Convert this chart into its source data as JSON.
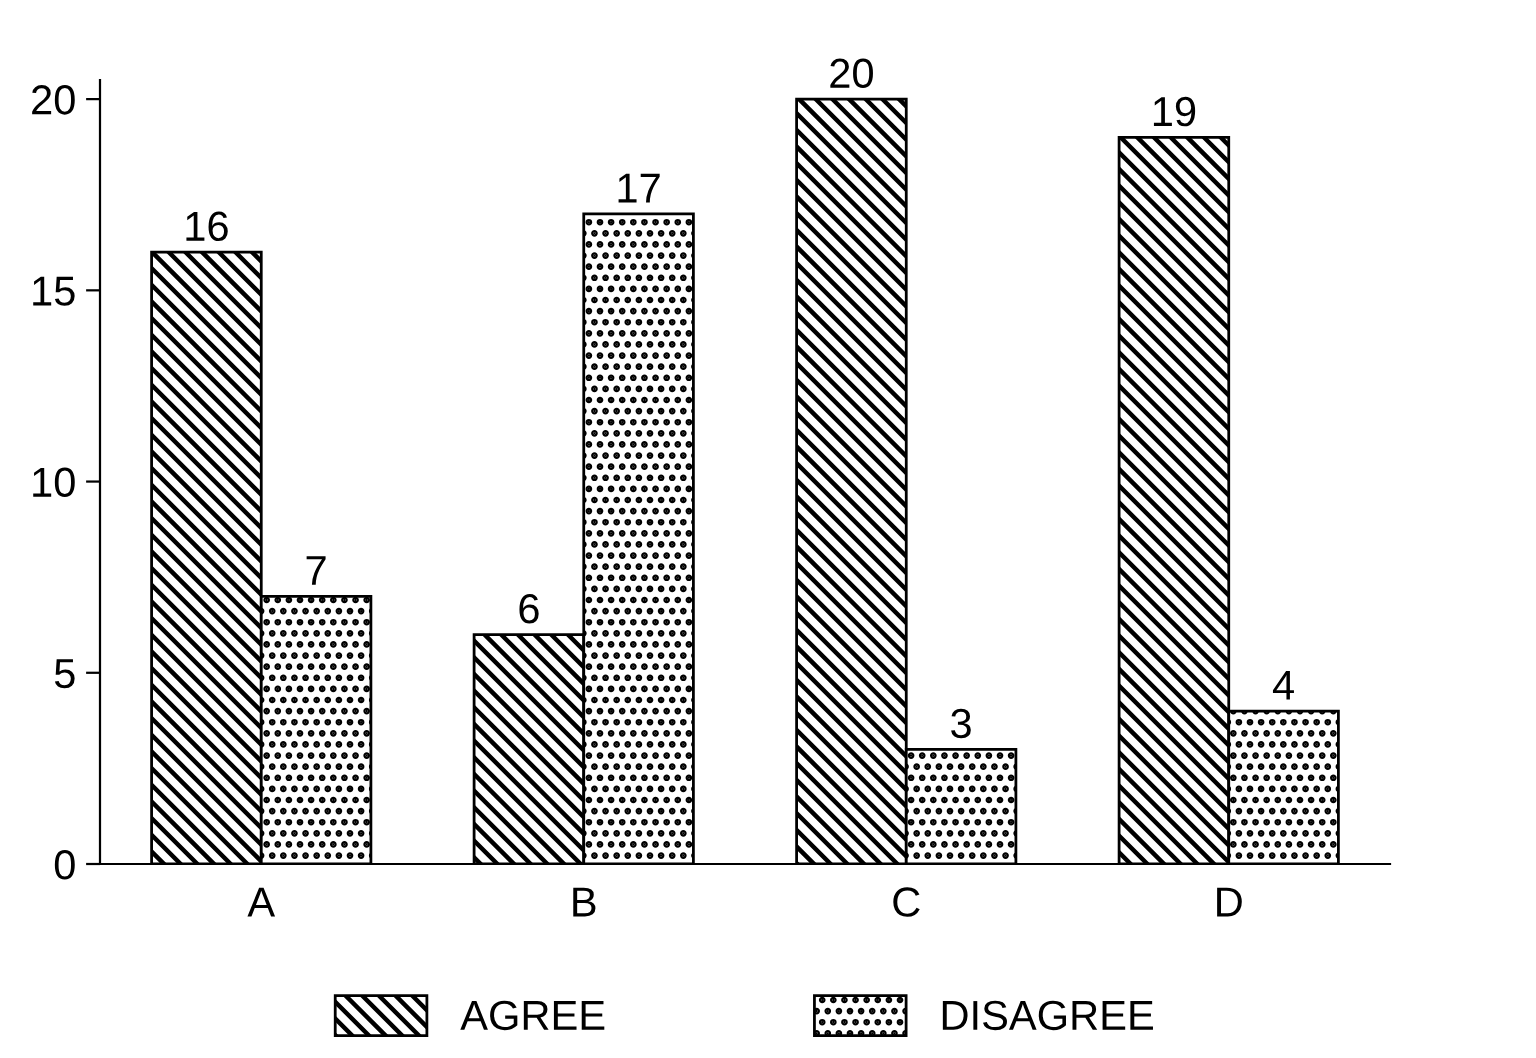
{
  "chart_data": {
    "type": "bar",
    "categories": [
      "A",
      "B",
      "C",
      "D"
    ],
    "series": [
      {
        "name": "AGREE",
        "color": "#000000",
        "values": [
          16,
          6,
          20,
          19
        ]
      },
      {
        "name": "DISAGREE",
        "color": "#000000",
        "values": [
          7,
          17,
          3,
          4
        ]
      }
    ],
    "ylim": [
      0,
      20.5
    ],
    "yticks": [
      0,
      5,
      10,
      15,
      20
    ],
    "data_labels": true,
    "grid": false,
    "legend": "bottom"
  }
}
